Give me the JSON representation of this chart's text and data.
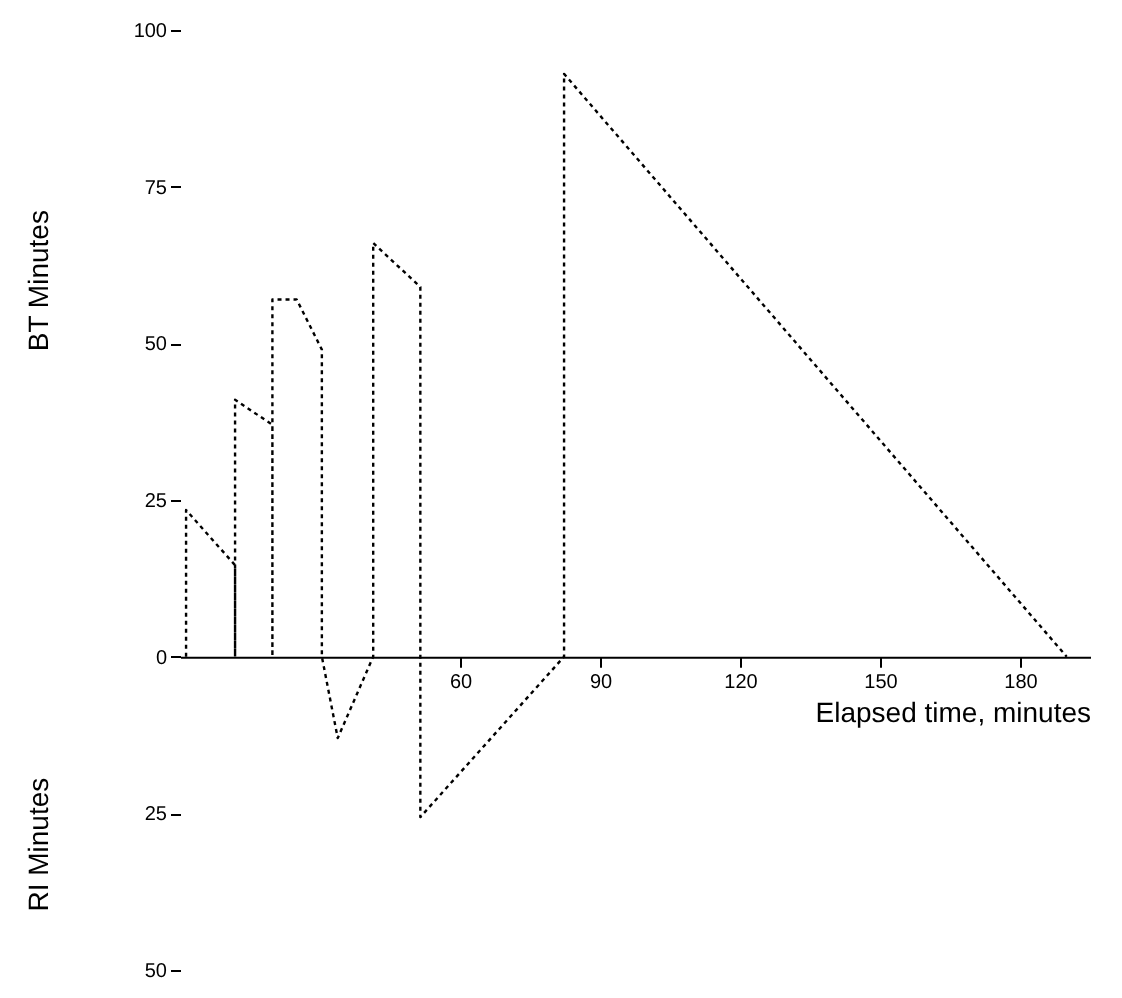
{
  "chart_data": {
    "type": "line",
    "xlabel": "Elapsed time, minutes",
    "ylabel": "BT Minutes",
    "annotations": [
      "RI Minutes"
    ],
    "x": [
      1.3,
      1.3,
      11.8,
      11.8,
      11.8,
      19.8,
      19.8,
      19.8,
      25,
      30.4,
      30.4,
      33.8,
      41.4,
      41.4,
      51.5,
      51.5,
      51.5,
      82.3,
      82.3,
      190
    ],
    "series": [
      {
        "color": "#000000",
        "values": [
          0,
          23.4,
          14.6,
          0,
          41,
          37,
          0,
          57,
          57,
          49,
          0,
          -13,
          0,
          66,
          59,
          0,
          -25.6,
          0,
          93,
          0
        ]
      }
    ],
    "xlim": [
      0,
      195
    ],
    "xticks": [
      60,
      90,
      120,
      150,
      180
    ],
    "ylim": [
      -50,
      100
    ],
    "yticks": [
      {
        "value": -50,
        "label": "50"
      },
      {
        "value": -25,
        "label": "25"
      },
      0,
      25,
      50,
      75,
      100
    ],
    "grid": false,
    "line_style": "dotted",
    "marker": "none"
  }
}
